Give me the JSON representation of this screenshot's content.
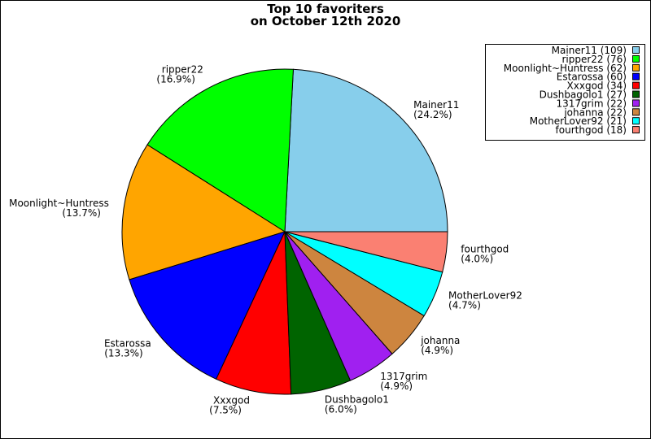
{
  "chart_data": {
    "type": "pie",
    "title": [
      "Top 10 favoriters",
      "on October 12th 2020"
    ],
    "start_angle_deg": 0,
    "direction": "counterclockwise",
    "legend_placement": "top-right",
    "slices": [
      {
        "label": "Mainer11",
        "value": 109,
        "percent": "24.2%",
        "legend": "Mainer11 (109)",
        "color": "#87ceeb"
      },
      {
        "label": "ripper22",
        "value": 76,
        "percent": "16.9%",
        "legend": "ripper22 (76)",
        "color": "#00ff00"
      },
      {
        "label": "Moonlight~Huntress",
        "value": 62,
        "percent": "13.7%",
        "legend": "Moonlight~Huntress (62)",
        "color": "#ffa500"
      },
      {
        "label": "Estarossa",
        "value": 60,
        "percent": "13.3%",
        "legend": "Estarossa (60)",
        "color": "#0000ff"
      },
      {
        "label": "Xxxgod",
        "value": 34,
        "percent": "7.5%",
        "legend": "Xxxgod (34)",
        "color": "#ff0000"
      },
      {
        "label": "Dushbagolo1",
        "value": 27,
        "percent": "6.0%",
        "legend": "Dushbagolo1 (27)",
        "color": "#006400"
      },
      {
        "label": "1317grim",
        "value": 22,
        "percent": "4.9%",
        "legend": "1317grim (22)",
        "color": "#a020f0"
      },
      {
        "label": "johanna",
        "value": 22,
        "percent": "4.9%",
        "legend": "johanna (22)",
        "color": "#cd853f"
      },
      {
        "label": "MotherLover92",
        "value": 21,
        "percent": "4.7%",
        "legend": "MotherLover92 (21)",
        "color": "#00ffff"
      },
      {
        "label": "fourthgod",
        "value": 18,
        "percent": "4.0%",
        "legend": "fourthgod (18)",
        "color": "#fa8072"
      }
    ]
  }
}
